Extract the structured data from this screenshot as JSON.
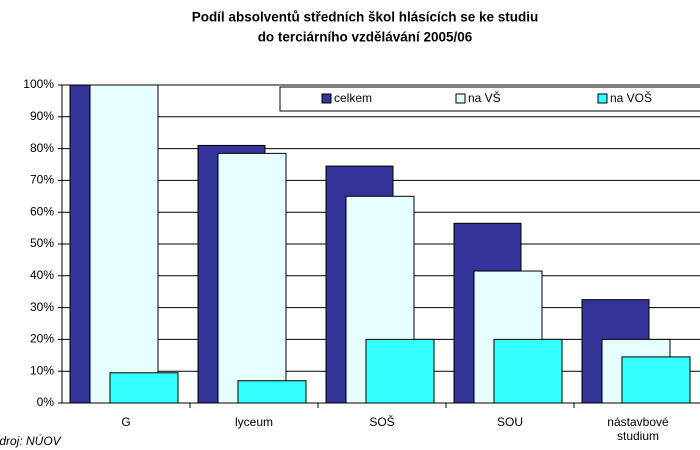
{
  "chart_data": {
    "type": "bar",
    "title_lines": [
      "Podíl absolventů středních škol hlásících se ke studiu",
      "do terciárního vzdělávání 2005/06"
    ],
    "categories": [
      "G",
      "lyceum",
      "SOŠ",
      "SOU",
      "nástavbové studium"
    ],
    "series": [
      {
        "name": "celkem",
        "color": "#333399",
        "values": [
          100,
          81,
          74.5,
          56.5,
          32.5
        ]
      },
      {
        "name": "na VŠ",
        "color": "#e6ffff",
        "values": [
          100,
          78.5,
          65,
          41.5,
          20
        ]
      },
      {
        "name": "na VOŠ",
        "color": "#33ffff",
        "values": [
          9.5,
          7,
          20,
          20,
          14.5
        ]
      }
    ],
    "ylim": [
      0,
      100
    ],
    "yticks": [
      {
        "value": 0,
        "label": "0%"
      },
      {
        "value": 10,
        "label": "10%"
      },
      {
        "value": 20,
        "label": "20%"
      },
      {
        "value": 30,
        "label": "30%"
      },
      {
        "value": 40,
        "label": "40%"
      },
      {
        "value": 50,
        "label": "50%"
      },
      {
        "value": 60,
        "label": "60%"
      },
      {
        "value": 70,
        "label": "70%"
      },
      {
        "value": 80,
        "label": "80%"
      },
      {
        "value": 90,
        "label": "90%"
      },
      {
        "value": 100,
        "label": "100%"
      }
    ],
    "grid": true,
    "legend": "top-right",
    "source": "Zdroj: NÚOV"
  }
}
